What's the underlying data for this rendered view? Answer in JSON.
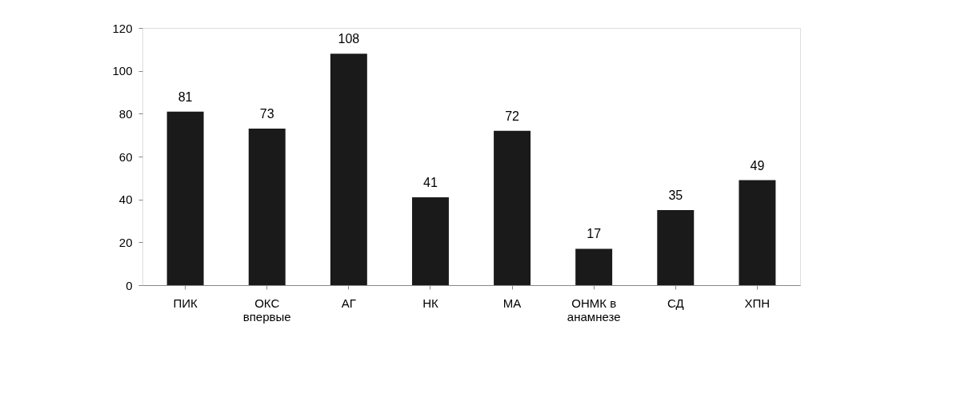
{
  "chart_data": {
    "type": "bar",
    "categories": [
      "ПИК",
      "ОКС впервые",
      "АГ",
      "НК",
      "МА",
      "ОНМК в анамнезе",
      "СД",
      "ХПН"
    ],
    "values": [
      81,
      73,
      108,
      41,
      72,
      17,
      35,
      49
    ],
    "color": "#1a1a1a",
    "ylim": [
      0,
      120
    ],
    "yticks": [
      0,
      20,
      40,
      60,
      80,
      100,
      120
    ],
    "data_labels": true,
    "grid": false
  }
}
